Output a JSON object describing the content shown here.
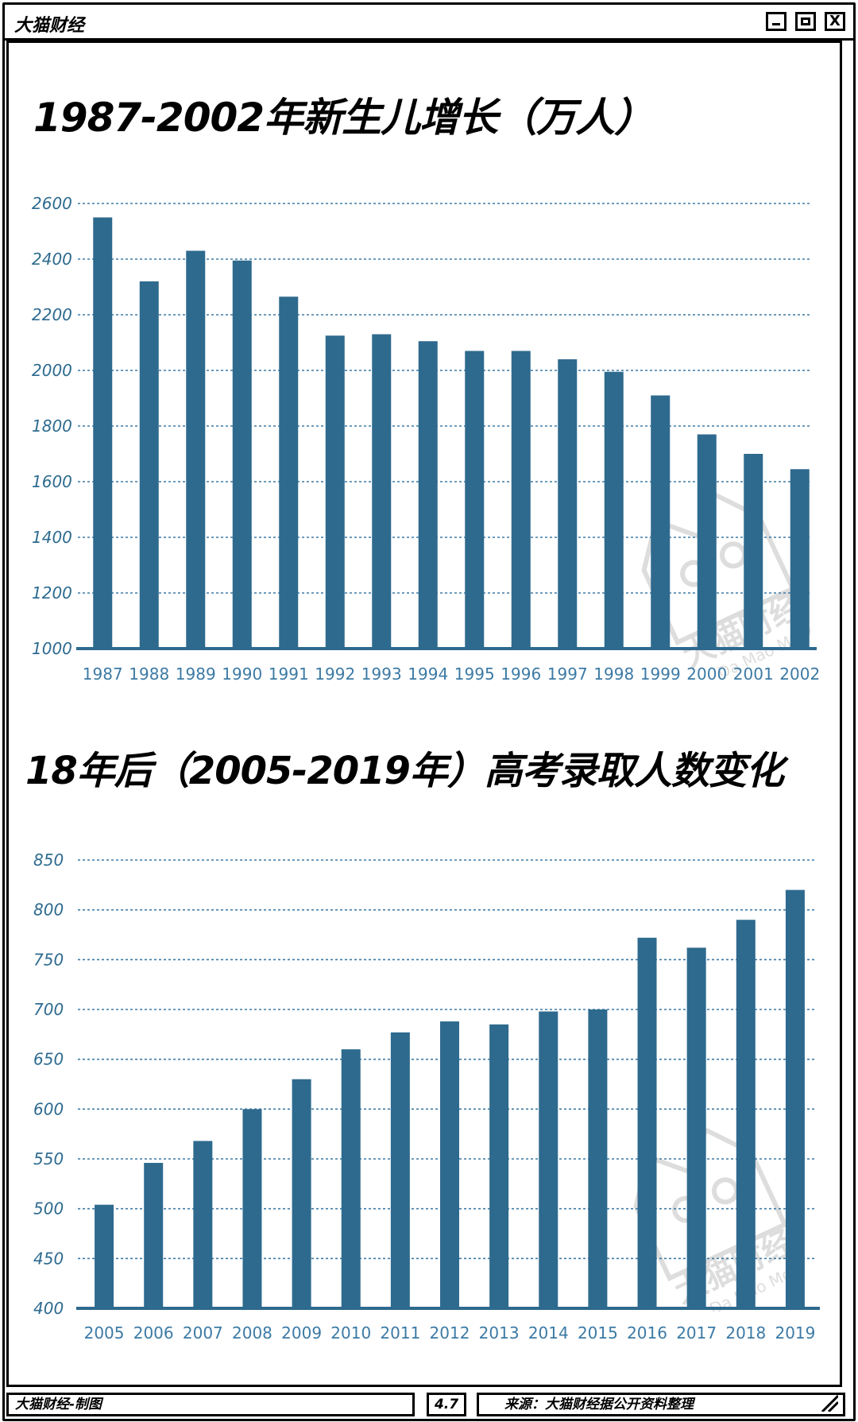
{
  "app": {
    "title": "大猫财经",
    "close_label": "X"
  },
  "chart_titles": {
    "top": "1987-2002年新生儿增长（万人）",
    "bottom": "18年后（2005-2019年）高考录取人数变化"
  },
  "watermark": {
    "cn": "大猫财经",
    "en": "Da Mao Money"
  },
  "footer": {
    "left": "大猫财经-制图",
    "middle": "4.7",
    "right": "来源：大猫财经据公开资料整理"
  },
  "colors": {
    "bar": "#2e6a8e",
    "grid": "#3d7aa6",
    "axis": "#2e6a8e"
  },
  "chart_data": [
    {
      "type": "bar",
      "title": "1987-2002年新生儿增长（万人）",
      "categories": [
        "1987",
        "1988",
        "1989",
        "1990",
        "1991",
        "1992",
        "1993",
        "1994",
        "1995",
        "1996",
        "1997",
        "1998",
        "1999",
        "2000",
        "2001",
        "2002"
      ],
      "values": [
        2550,
        2320,
        2430,
        2395,
        2265,
        2125,
        2130,
        2105,
        2070,
        2070,
        2040,
        1995,
        1910,
        1770,
        1700,
        1645
      ],
      "ylim": [
        1000,
        2600
      ],
      "yticks": [
        1000,
        1200,
        1400,
        1600,
        1800,
        2000,
        2200,
        2400,
        2600
      ],
      "grid": true
    },
    {
      "type": "bar",
      "title": "18年后（2005-2019年）高考录取人数变化",
      "categories": [
        "2005",
        "2006",
        "2007",
        "2008",
        "2009",
        "2010",
        "2011",
        "2012",
        "2013",
        "2014",
        "2015",
        "2016",
        "2017",
        "2018",
        "2019"
      ],
      "values": [
        504,
        546,
        568,
        600,
        630,
        660,
        677,
        688,
        685,
        698,
        700,
        772,
        762,
        790,
        820
      ],
      "ylim": [
        400,
        850
      ],
      "yticks": [
        400,
        450,
        500,
        550,
        600,
        650,
        700,
        750,
        800,
        850
      ],
      "grid": true
    }
  ]
}
